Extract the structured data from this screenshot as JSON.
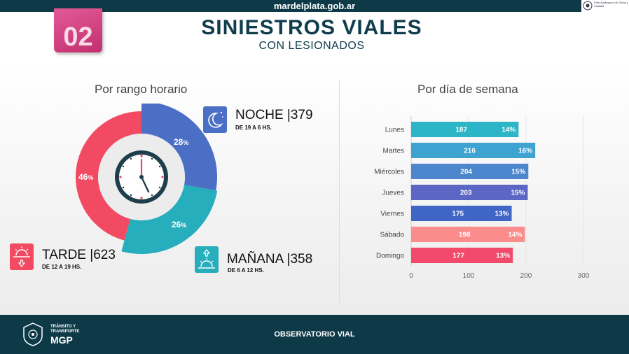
{
  "header": {
    "site": "mardelplata.gob.ar",
    "logo_text": "Ente Autárquico de Obras y Vialidad",
    "badge": "02"
  },
  "title": "SINIESTROS VIALES",
  "subtitle": "CON LESIONADOS",
  "chart_data": [
    {
      "type": "pie",
      "title": "Por rango horario",
      "slices": [
        {
          "name": "NOCHE",
          "count": 379,
          "percent": 28,
          "range": "DE 19 A 6 HS.",
          "head": "NOCHE |379",
          "label": "28",
          "color": "#4b6fc4"
        },
        {
          "name": "MAÑANA",
          "count": 358,
          "percent": 26,
          "range": "DE 6 A 12 HS.",
          "head": "MAÑANA |358",
          "label": "26",
          "color": "#27aebd"
        },
        {
          "name": "TARDE",
          "count": 623,
          "percent": 46,
          "range": "DE 12 A 19 HS.",
          "head": "TARDE |623",
          "label": "46",
          "color": "#f24a62"
        }
      ],
      "percent_sign": "%",
      "colors": {
        "noche_icon": "#4b6fc4",
        "manana_icon": "#27aebd",
        "tarde_icon": "#f24a62"
      }
    },
    {
      "type": "bar",
      "orientation": "horizontal",
      "title": "Por día de semana",
      "categories": [
        "Lunes",
        "Martes",
        "Miércoles",
        "Jueves",
        "Viernes",
        "Sábado",
        "Domingo"
      ],
      "values": [
        187,
        216,
        204,
        203,
        175,
        198,
        177
      ],
      "percent_labels": [
        "14%",
        "16%",
        "15%",
        "15%",
        "13%",
        "14%",
        "13%"
      ],
      "colors": [
        "#2bb5c6",
        "#3ea3d1",
        "#4c86cc",
        "#5c66c4",
        "#3f66c6",
        "#fb8c8c",
        "#f24a6a"
      ],
      "xlim": [
        0,
        300
      ],
      "xticks": [
        "0",
        "100",
        "200",
        "300"
      ]
    }
  ],
  "footer": {
    "center": "OBSERVATORIO VIAL",
    "logo_line1": "TRÁNSITO Y",
    "logo_line2": "TRANSPORTE",
    "logo_line3": "MGP"
  }
}
